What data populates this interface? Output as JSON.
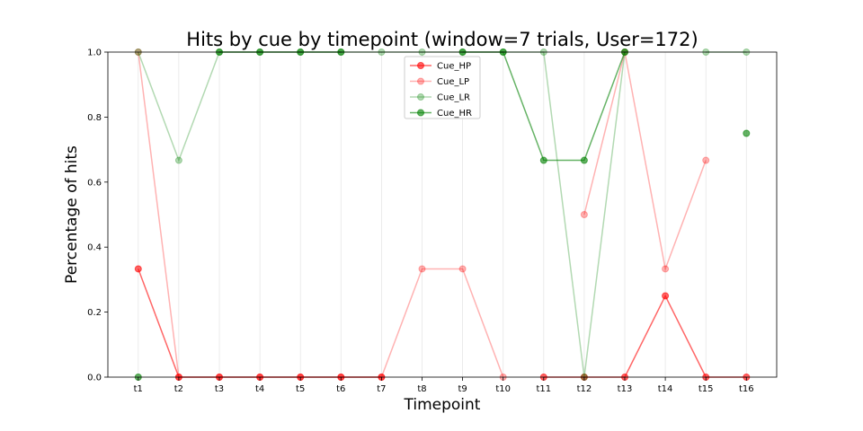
{
  "chart_data": {
    "type": "line",
    "title": "Hits by cue by timepoint (window=7 trials, User=172)",
    "xlabel": "Timepoint",
    "ylabel": "Percentage of hits",
    "categories": [
      "t1",
      "t2",
      "t3",
      "t4",
      "t5",
      "t6",
      "t7",
      "t8",
      "t9",
      "t10",
      "t11",
      "t12",
      "t13",
      "t14",
      "t15",
      "t16"
    ],
    "ylim": [
      0,
      1
    ],
    "yticks": [
      "0.0",
      "0.2",
      "0.4",
      "0.6",
      "0.8",
      "1.0"
    ],
    "grid": "vertical",
    "legend_position": "top-center",
    "series": [
      {
        "name": "Cue_HP",
        "color": "#ff0000",
        "alpha": 0.6,
        "values": [
          0.333,
          0,
          0,
          0,
          0,
          0,
          0,
          null,
          null,
          null,
          0,
          0,
          0,
          0.25,
          0,
          0
        ]
      },
      {
        "name": "Cue_LP",
        "color": "#ff0000",
        "alpha": 0.3,
        "values": [
          1.0,
          0,
          0,
          0,
          0,
          0,
          0,
          0.333,
          0.333,
          0,
          null,
          0.5,
          1.0,
          0.333,
          0.667,
          null
        ]
      },
      {
        "name": "Cue_LR",
        "color": "#008000",
        "alpha": 0.3,
        "values": [
          1.0,
          0.667,
          1.0,
          1.0,
          1.0,
          1.0,
          1.0,
          1.0,
          1.0,
          1.0,
          1.0,
          0,
          1.0,
          null,
          1.0,
          1.0
        ]
      },
      {
        "name": "Cue_HR",
        "color": "#008000",
        "alpha": 0.6,
        "values": [
          0,
          null,
          1.0,
          1.0,
          1.0,
          1.0,
          null,
          null,
          1.0,
          1.0,
          0.667,
          0.667,
          1.0,
          null,
          null,
          0.75
        ]
      }
    ]
  }
}
